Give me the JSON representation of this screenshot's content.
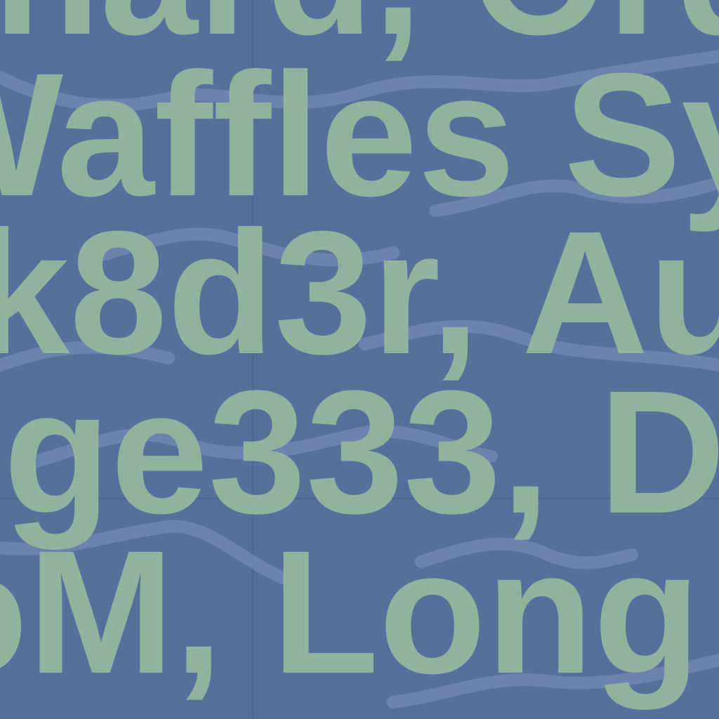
{
  "lines": [
    "nard, Ord",
    "Waffles Sy",
    "k8d3r, Au",
    "ge333, D",
    "oM, Long"
  ]
}
